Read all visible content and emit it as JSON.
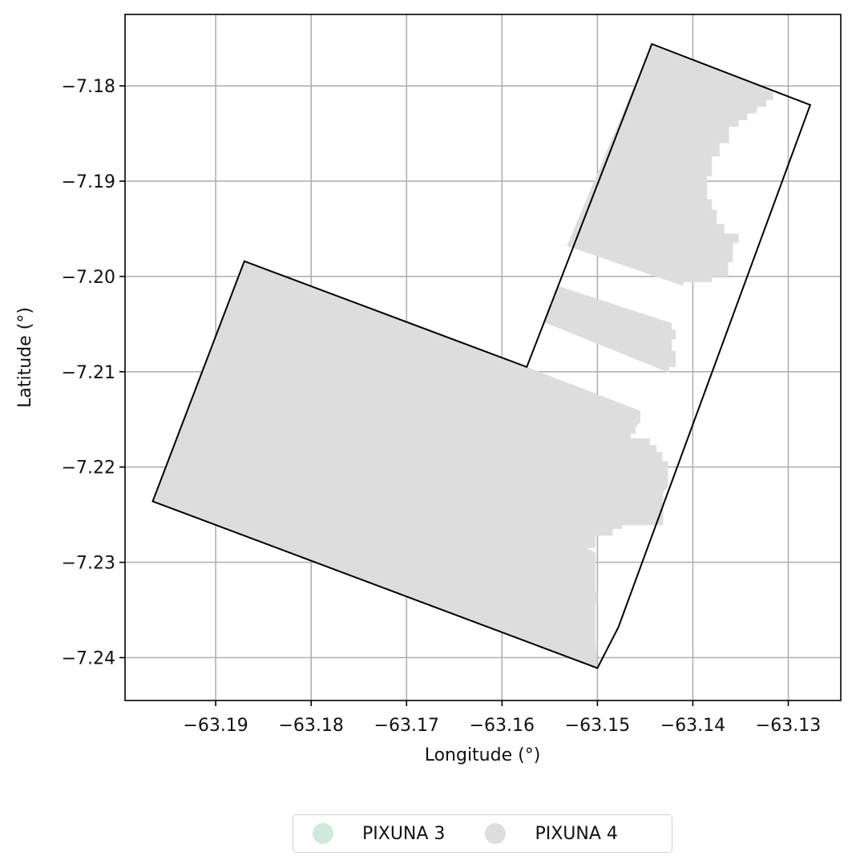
{
  "chart_data": {
    "type": "map",
    "xlabel": "Longitude (°)",
    "ylabel": "Latitude (°)",
    "xlim": [
      -63.1995,
      -63.1245
    ],
    "ylim": [
      -7.2445,
      -7.1725
    ],
    "x_ticks": [
      -63.19,
      -63.18,
      -63.17,
      -63.16,
      -63.15,
      -63.14,
      -63.13
    ],
    "x_tick_labels": [
      "−63.19",
      "−63.18",
      "−63.17",
      "−63.16",
      "−63.15",
      "−63.14",
      "−63.13"
    ],
    "y_ticks": [
      -7.18,
      -7.19,
      -7.2,
      -7.21,
      -7.22,
      -7.23,
      -7.24
    ],
    "y_tick_labels": [
      "−7.18",
      "−7.19",
      "−7.20",
      "−7.21",
      "−7.22",
      "−7.23",
      "−7.24"
    ],
    "grid": true,
    "legend_position": "bottom-center",
    "legend": [
      {
        "label": "PIXUNA 3",
        "color": "#cdeadc"
      },
      {
        "label": "PIXUNA 4",
        "color": "#dddddd"
      }
    ],
    "boundary": [
      [
        -63.1966,
        -7.2236
      ],
      [
        -63.187,
        -7.1984
      ],
      [
        -63.1574,
        -7.2095
      ],
      [
        -63.1443,
        -7.1756
      ],
      [
        -63.1277,
        -7.182
      ],
      [
        -63.1478,
        -7.2368
      ],
      [
        -63.15,
        -7.2411
      ]
    ],
    "fill_color": "#dddddd",
    "filled_areas": [
      [
        [
          -63.1966,
          -7.2236
        ],
        [
          -63.187,
          -7.1984
        ],
        [
          -63.1574,
          -7.2095
        ],
        [
          -63.1455,
          -7.2141
        ],
        [
          -63.1455,
          -7.2153
        ],
        [
          -63.146,
          -7.2158
        ],
        [
          -63.146,
          -7.2165
        ],
        [
          -63.1465,
          -7.2165
        ],
        [
          -63.1465,
          -7.217
        ],
        [
          -63.1445,
          -7.217
        ],
        [
          -63.1445,
          -7.2177
        ],
        [
          -63.1438,
          -7.2177
        ],
        [
          -63.1438,
          -7.2184
        ],
        [
          -63.1432,
          -7.2184
        ],
        [
          -63.1432,
          -7.2194
        ],
        [
          -63.1426,
          -7.2194
        ],
        [
          -63.1426,
          -7.2221
        ],
        [
          -63.1431,
          -7.2226
        ],
        [
          -63.1431,
          -7.2261
        ],
        [
          -63.1474,
          -7.2261
        ],
        [
          -63.1474,
          -7.2265
        ],
        [
          -63.1484,
          -7.2265
        ],
        [
          -63.1484,
          -7.2272
        ],
        [
          -63.1502,
          -7.2272
        ],
        [
          -63.1502,
          -7.2285
        ],
        [
          -63.1515,
          -7.2285
        ],
        [
          -63.1515,
          -7.2296
        ],
        [
          -63.1503,
          -7.2296
        ],
        [
          -63.1503,
          -7.2331
        ],
        [
          -63.15,
          -7.2331
        ],
        [
          -63.15,
          -7.2343
        ],
        [
          -63.1502,
          -7.2343
        ],
        [
          -63.1502,
          -7.2382
        ],
        [
          -63.15,
          -7.2411
        ],
        [
          -63.1965,
          -7.2237
        ]
      ],
      [
        [
          -63.1502,
          -7.2343
        ],
        [
          -63.1525,
          -7.2347
        ],
        [
          -63.1525,
          -7.2352
        ],
        [
          -63.1545,
          -7.2352
        ],
        [
          -63.1545,
          -7.2347
        ],
        [
          -63.1552,
          -7.2347
        ],
        [
          -63.1552,
          -7.2342
        ],
        [
          -63.1585,
          -7.2342
        ],
        [
          -63.1585,
          -7.232
        ],
        [
          -63.1598,
          -7.232
        ],
        [
          -63.1598,
          -7.2266
        ],
        [
          -63.1625,
          -7.2266
        ],
        [
          -63.1625,
          -7.2262
        ],
        [
          -63.1598,
          -7.2262
        ],
        [
          -63.1575,
          -7.225
        ],
        [
          -63.1502,
          -7.229
        ]
      ],
      [
        [
          -63.1532,
          -7.1968
        ],
        [
          -63.1443,
          -7.1756
        ],
        [
          -63.1316,
          -7.1806
        ],
        [
          -63.1316,
          -7.1815
        ],
        [
          -63.1323,
          -7.1815
        ],
        [
          -63.1323,
          -7.1822
        ],
        [
          -63.1333,
          -7.1822
        ],
        [
          -63.1333,
          -7.1829
        ],
        [
          -63.1343,
          -7.1829
        ],
        [
          -63.1343,
          -7.1836
        ],
        [
          -63.1352,
          -7.1836
        ],
        [
          -63.1352,
          -7.1843
        ],
        [
          -63.1362,
          -7.1843
        ],
        [
          -63.1362,
          -7.186
        ],
        [
          -63.1372,
          -7.186
        ],
        [
          -63.1372,
          -7.1874
        ],
        [
          -63.138,
          -7.1874
        ],
        [
          -63.138,
          -7.1895
        ],
        [
          -63.1385,
          -7.1895
        ],
        [
          -63.1385,
          -7.1919
        ],
        [
          -63.138,
          -7.1919
        ],
        [
          -63.138,
          -7.193
        ],
        [
          -63.1375,
          -7.193
        ],
        [
          -63.1375,
          -7.1945
        ],
        [
          -63.1367,
          -7.1945
        ],
        [
          -63.1367,
          -7.1955
        ],
        [
          -63.1352,
          -7.1955
        ],
        [
          -63.1352,
          -7.1965
        ],
        [
          -63.1358,
          -7.1965
        ],
        [
          -63.1358,
          -7.1985
        ],
        [
          -63.1363,
          -7.1985
        ],
        [
          -63.1363,
          -7.2
        ],
        [
          -63.138,
          -7.2
        ],
        [
          -63.138,
          -7.2006
        ],
        [
          -63.141,
          -7.2006
        ],
        [
          -63.141,
          -7.201
        ]
      ],
      [
        [
          -63.1556,
          -7.2048
        ],
        [
          -63.1541,
          -7.201
        ],
        [
          -63.1422,
          -7.2049
        ],
        [
          -63.1422,
          -7.2056
        ],
        [
          -63.1418,
          -7.2056
        ],
        [
          -63.1418,
          -7.2066
        ],
        [
          -63.1422,
          -7.2066
        ],
        [
          -63.1422,
          -7.2078
        ],
        [
          -63.1418,
          -7.2078
        ],
        [
          -63.1418,
          -7.2095
        ],
        [
          -63.1425,
          -7.2095
        ],
        [
          -63.1425,
          -7.2101
        ]
      ]
    ]
  }
}
